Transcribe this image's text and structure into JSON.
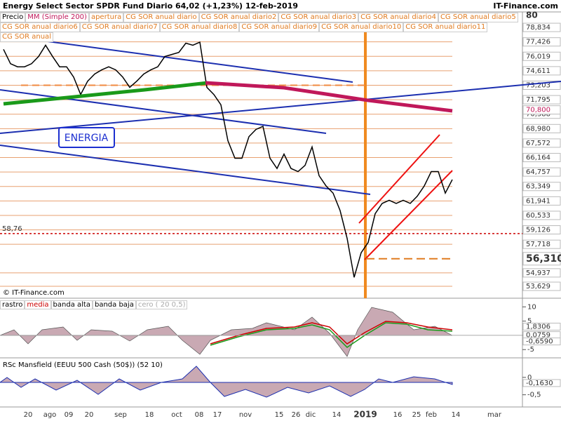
{
  "header": {
    "title": "Energy Select Sector SPDR Fund  Diario  64,02 (+1,23%)  12-feb-2019",
    "site": "IT-Finance.com"
  },
  "legend": [
    {
      "text": "Precio",
      "color": "#000000"
    },
    {
      "text": "MM (Simple 200)",
      "color": "#c0185a"
    },
    {
      "text": "apertura",
      "color": "#e07b20"
    },
    {
      "text": "CG SOR anual diario",
      "color": "#e07b20"
    },
    {
      "text": "CG SOR anual diario2",
      "color": "#e07b20"
    },
    {
      "text": "CG SOR anual diario3",
      "color": "#e07b20"
    },
    {
      "text": "CG SOR anual diario4",
      "color": "#e07b20"
    },
    {
      "text": "CG SOR anual diario5",
      "color": "#e07b20"
    },
    {
      "text": "CG SOR anual diario6",
      "color": "#e07b20"
    },
    {
      "text": "CG SOR anual diario7",
      "color": "#e07b20"
    },
    {
      "text": "CG SOR anual diario8",
      "color": "#e07b20"
    },
    {
      "text": "CG SOR anual diario9",
      "color": "#e07b20"
    },
    {
      "text": "CG SOR anual diario10",
      "color": "#e07b20"
    },
    {
      "text": "CG SOR anual diario11",
      "color": "#e07b20"
    },
    {
      "text": "CG SOR anual",
      "color": "#e07b20"
    }
  ],
  "annotation": "ENERGIA",
  "copyright": "© IT-Finance.com",
  "chart_data": {
    "type": "line",
    "ylim": [
      52.47,
      80
    ],
    "yticks": [
      80,
      {
        "value": 78.834,
        "label": "78,834"
      },
      {
        "value": 77.426,
        "label": "77,426"
      },
      {
        "value": 76.019,
        "label": "76,019"
      },
      {
        "value": 74.611,
        "label": "74,611"
      },
      {
        "value": 73.203,
        "label": "73,203"
      },
      {
        "value": 71.795,
        "label": "71,795"
      },
      {
        "value": 70.388,
        "label": "70,388"
      },
      {
        "value": 68.98,
        "label": "68,980"
      },
      {
        "value": 67.572,
        "label": "67,572"
      },
      {
        "value": 66.164,
        "label": "66,164"
      },
      {
        "value": 64.757,
        "label": "64,757"
      },
      {
        "value": 63.349,
        "label": "63,349"
      },
      {
        "value": 61.941,
        "label": "61,941"
      },
      {
        "value": 60.533,
        "label": "60,533"
      },
      {
        "value": 59.126,
        "label": "59,126"
      },
      {
        "value": 57.718,
        "label": "57,718"
      },
      {
        "value": 54.937,
        "label": "54,937"
      },
      {
        "value": 53.629,
        "label": "53,629"
      }
    ],
    "markers": [
      {
        "value": 70.8,
        "label": "70,800",
        "color": "#c0185a"
      },
      {
        "value": 56.31,
        "label": "56,310",
        "color": "#e07b20"
      },
      {
        "value": 58.76,
        "label": "58,76",
        "color": "#cc0000"
      }
    ],
    "series": [
      {
        "name": "Precio",
        "color": "#000000",
        "values": [
          76.7,
          75.3,
          75.0,
          75.0,
          75.3,
          76.0,
          77.1,
          76.0,
          75.0,
          75.0,
          74.0,
          72.3,
          73.6,
          74.3,
          74.7,
          75.0,
          74.7,
          74.0,
          73.0,
          73.6,
          74.3,
          74.7,
          75.0,
          76.0,
          76.2,
          76.4,
          77.3,
          77.1,
          77.4,
          73.0,
          72.3,
          71.3,
          67.8,
          66.1,
          66.1,
          68.2,
          68.9,
          69.2,
          66.1,
          65.1,
          66.5,
          65.1,
          64.8,
          65.4,
          67.2,
          64.4,
          63.4,
          62.7,
          61.0,
          58.3,
          54.5,
          56.9,
          57.9,
          60.7,
          61.7,
          62.0,
          61.7,
          62.0,
          61.7,
          62.4,
          63.4,
          64.8,
          64.8,
          62.7,
          64.02
        ]
      },
      {
        "name": "MM (Simple 200)",
        "color": "#1a9a1a",
        "color2": "#c0185a",
        "x": [
          0,
          10,
          20,
          29,
          40,
          52,
          64
        ],
        "values": [
          71.39,
          72.07,
          72.75,
          73.43,
          72.96,
          71.73,
          70.71
        ]
      }
    ],
    "x_labels": [
      "20",
      "ago",
      "09",
      "20",
      "sep",
      "18",
      "oct",
      "08",
      "17",
      "nov",
      "15",
      "26",
      "dic",
      "14",
      "2019",
      "16",
      "25",
      "feb",
      "14",
      "mar"
    ],
    "panel1": {
      "legend": [
        {
          "text": "rastro",
          "color": "#000000"
        },
        {
          "text": "media",
          "color": "#cc0000"
        },
        {
          "text": "banda alta",
          "color": "#000000"
        },
        {
          "text": "banda baja",
          "color": "#000000"
        },
        {
          "text": "cero ( 20 0,5)",
          "color": "#aaaaaa"
        }
      ],
      "ylim": [
        -7.9,
        12.3
      ],
      "yticks": [
        10,
        5,
        0,
        -5
      ],
      "labels": [
        {
          "value": 1.8306,
          "label": "1,8306"
        },
        {
          "value": 0.0759,
          "label": "0,0759"
        },
        {
          "value": -0.659,
          "label": "-0,6590"
        }
      ]
    },
    "panel2": {
      "title": "RSc Mansfield (EEUU 500 Cash (50$)) (52 10)",
      "ylim": [
        -0.85,
        0.5
      ],
      "yticks": [
        0,
        {
          "value": -0.5,
          "label": "-0,5"
        }
      ],
      "labels": [
        {
          "value": -0.163,
          "label": "-0,1630"
        }
      ]
    }
  }
}
